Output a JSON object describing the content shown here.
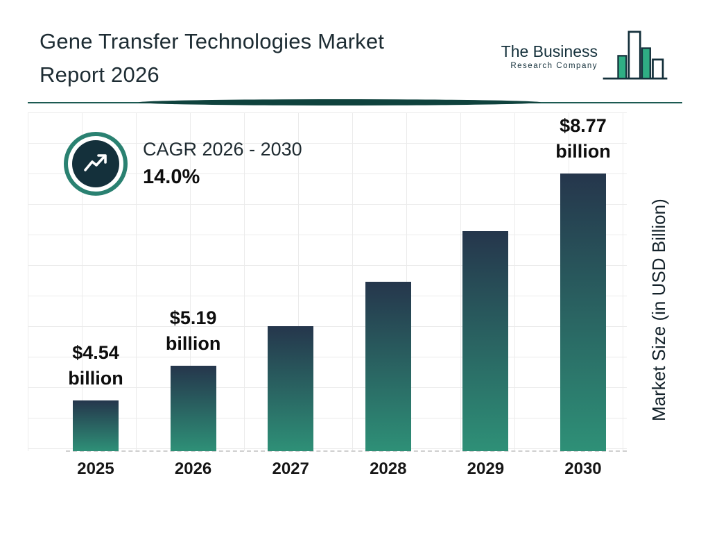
{
  "header": {
    "title_line1": "Gene Transfer Technologies Market",
    "title_line2": "Report 2026"
  },
  "logo": {
    "line1": "The Business",
    "line2": "Research Company"
  },
  "cagr": {
    "label": "CAGR 2026 - 2030",
    "value": "14.0%"
  },
  "chart_data": {
    "type": "bar",
    "title": "Gene Transfer Technologies Market Report 2026",
    "categories": [
      "2025",
      "2026",
      "2027",
      "2028",
      "2029",
      "2030"
    ],
    "values": [
      4.54,
      5.19,
      5.92,
      6.75,
      7.69,
      8.77
    ],
    "unit": "USD Billion",
    "data_labels": [
      {
        "amount": "$4.54",
        "unit": "billion"
      },
      {
        "amount": "$5.19",
        "unit": "billion"
      },
      null,
      null,
      null,
      {
        "amount": "$8.77",
        "unit": "billion"
      }
    ],
    "xlabel": "",
    "ylabel": "Market Size (in USD Billion)",
    "ylim": [
      3.6,
      9.8
    ],
    "grid": true,
    "legend": false,
    "bar_gradient_top": "#25364c",
    "bar_gradient_bottom": "#2e9077"
  },
  "icons": {
    "cagr": "trending-up-icon",
    "logo": "bar-chart-logo-icon"
  },
  "colors": {
    "accent_teal": "#2a8171",
    "dark_navy": "#14303b",
    "logo_green": "#2fae84",
    "title_text": "#1d2c33",
    "grid_line": "#ebebeb"
  }
}
